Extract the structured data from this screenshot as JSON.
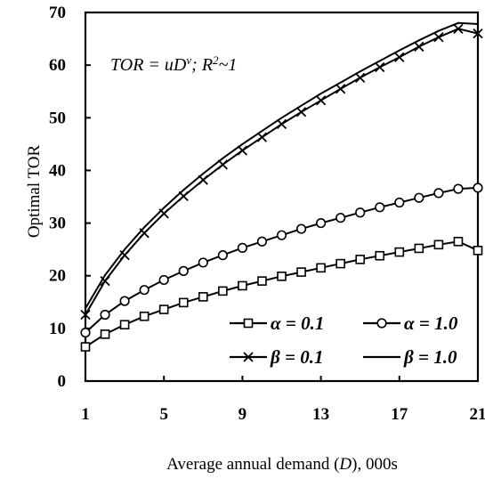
{
  "chart_data": {
    "type": "line",
    "title": "",
    "xlabel": "Average annual demand (D), 000s",
    "ylabel": "Optimal TOR",
    "xlim": [
      1,
      21
    ],
    "ylim": [
      0,
      70
    ],
    "x_ticks": [
      "1",
      "5",
      "9",
      "13",
      "17",
      "21"
    ],
    "y_ticks": [
      "0",
      "10",
      "20",
      "30",
      "40",
      "50",
      "60",
      "70"
    ],
    "annotation": "TOR = uD^v;  R^2~1",
    "grid": false,
    "legend_position": "bottom-right",
    "x": [
      1,
      2,
      3,
      4,
      5,
      6,
      7,
      8,
      9,
      10,
      11,
      12,
      13,
      14,
      15,
      16,
      17,
      18,
      19,
      20,
      21
    ],
    "series": [
      {
        "name": "α = 0.1",
        "marker": "square",
        "values": [
          6.5,
          8.9,
          10.7,
          12.3,
          13.6,
          14.9,
          16.0,
          17.1,
          18.1,
          19.0,
          19.9,
          20.7,
          21.5,
          22.3,
          23.1,
          23.8,
          24.5,
          25.2,
          25.9,
          26.5,
          24.8
        ]
      },
      {
        "name": "α = 1.0",
        "marker": "circle",
        "values": [
          9.2,
          12.6,
          15.2,
          17.3,
          19.2,
          20.9,
          22.5,
          23.9,
          25.3,
          26.5,
          27.7,
          28.9,
          30.0,
          31.0,
          32.0,
          33.0,
          33.9,
          34.8,
          35.7,
          36.5,
          36.7
        ]
      },
      {
        "name": "β = 0.1",
        "marker": "x",
        "values": [
          12.6,
          19.0,
          23.9,
          28.1,
          31.8,
          35.1,
          38.2,
          41.1,
          43.8,
          46.3,
          48.8,
          51.1,
          53.3,
          55.5,
          57.6,
          59.6,
          61.5,
          63.5,
          65.3,
          66.9,
          66.0
        ]
      },
      {
        "name": "β = 1.0",
        "marker": "none",
        "values": [
          13.8,
          20.1,
          25.0,
          29.2,
          32.9,
          36.3,
          39.4,
          42.3,
          45.0,
          47.5,
          50.0,
          52.3,
          54.6,
          56.7,
          58.8,
          60.8,
          62.8,
          64.7,
          66.5,
          68.0,
          67.8
        ]
      }
    ]
  }
}
